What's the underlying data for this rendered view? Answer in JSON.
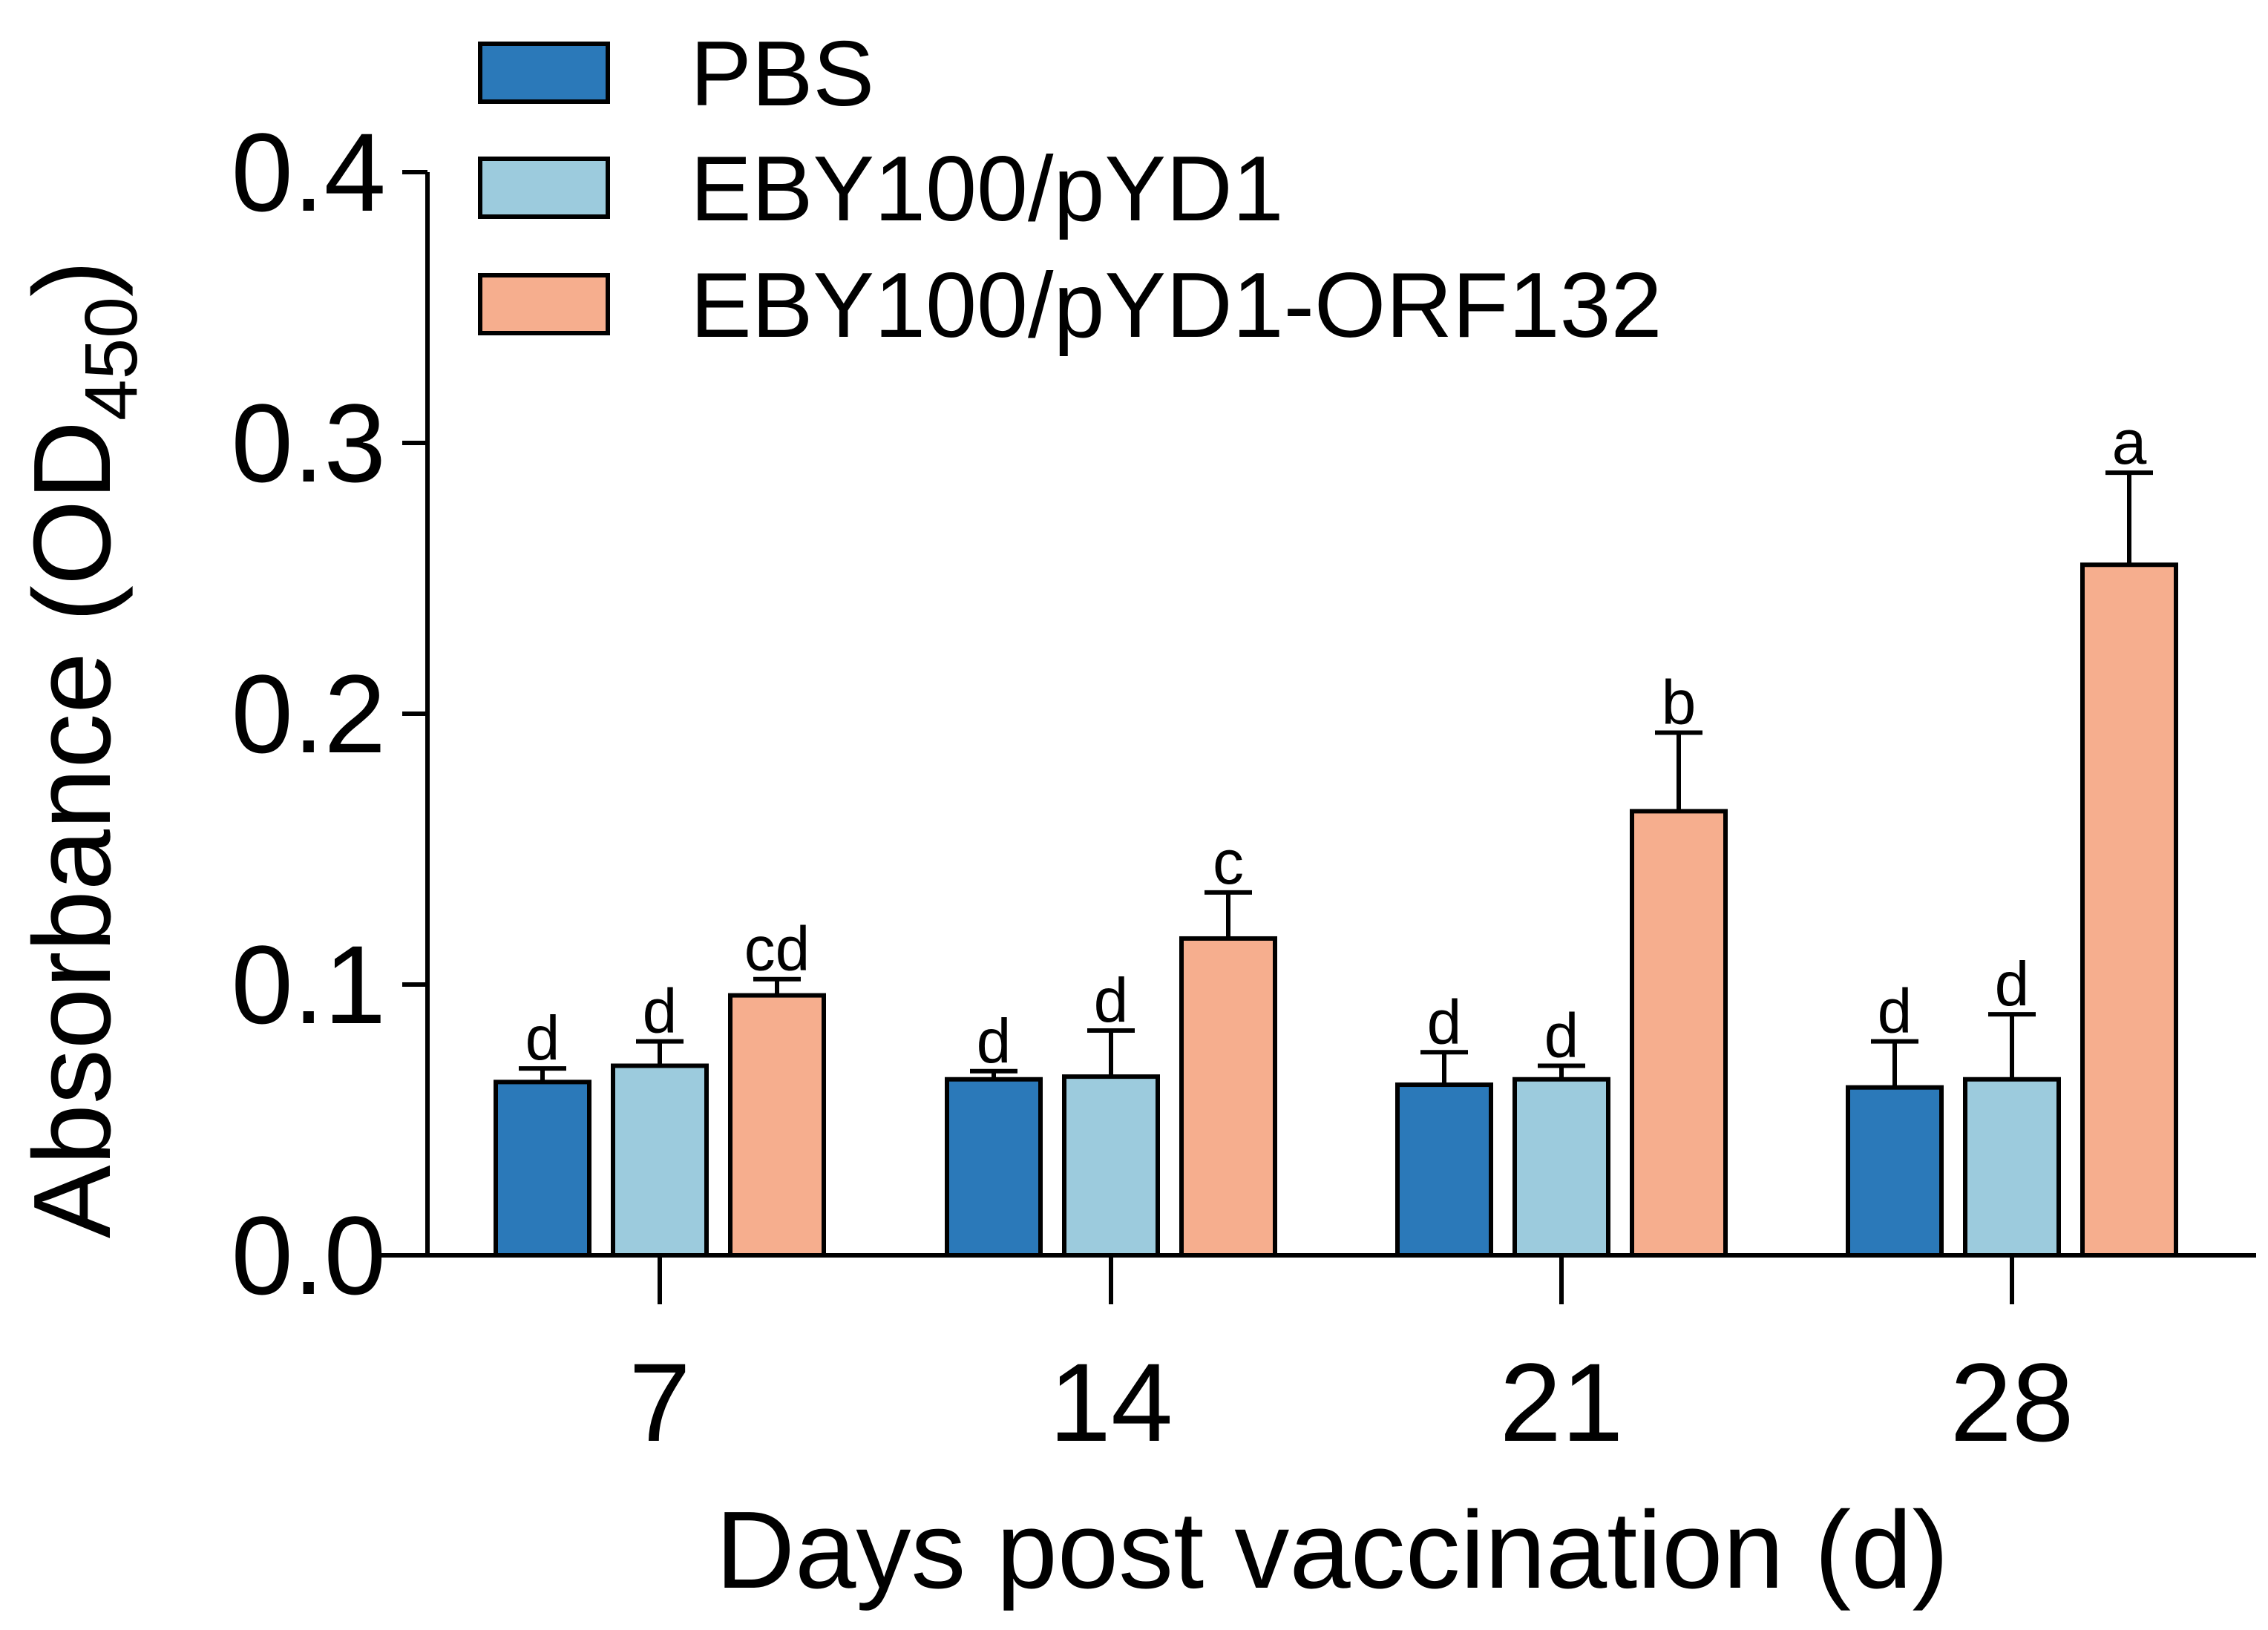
{
  "chart_data": {
    "type": "bar",
    "title": "",
    "xlabel": "Days post vaccination (d)",
    "ylabel": "Absorbance (OD",
    "ylabel_subscript": "450",
    "ylabel_close": ")",
    "ylim": [
      0,
      0.4
    ],
    "yticks": [
      "0.0",
      "0.1",
      "0.2",
      "0.3",
      "0.4"
    ],
    "ytick_values": [
      0,
      0.1,
      0.2,
      0.3,
      0.4
    ],
    "categories": [
      "7",
      "14",
      "21",
      "28"
    ],
    "legend_position": "top-left",
    "series": [
      {
        "name": "PBS",
        "color": "#2b79b9",
        "values": [
          0.064,
          0.065,
          0.063,
          0.062
        ],
        "errors": [
          0.005,
          0.003,
          0.012,
          0.017
        ],
        "letters": [
          "d",
          "d",
          "d",
          "d"
        ]
      },
      {
        "name": "EBY100/pYD1",
        "color": "#9ccbdd",
        "values": [
          0.07,
          0.066,
          0.065,
          0.065
        ],
        "errors": [
          0.009,
          0.017,
          0.005,
          0.024
        ],
        "letters": [
          "d",
          "d",
          "d",
          "d"
        ]
      },
      {
        "name": "EBY100/pYD1-ORF132",
        "color": "#f6ae8e",
        "values": [
          0.096,
          0.117,
          0.164,
          0.255
        ],
        "errors": [
          0.006,
          0.017,
          0.029,
          0.034
        ],
        "letters": [
          "cd",
          "c",
          "b",
          "a"
        ]
      }
    ]
  }
}
